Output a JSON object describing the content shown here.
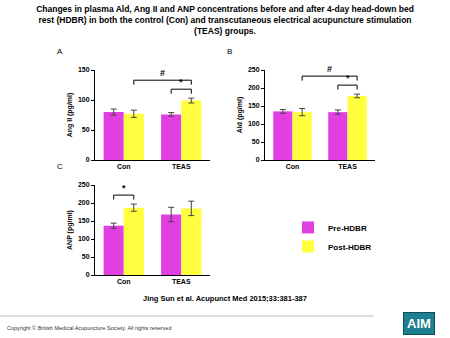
{
  "title_lines": [
    "Changes in plasma Ald, Ang II and ANP concentrations before and after 4-day head-down bed",
    "rest (HDBR) in both the control (Con) and transcutaneous electrical acupuncture stimulation",
    "(TEAS) groups."
  ],
  "chart_data": [
    {
      "type": "bar",
      "panel": "A",
      "y_label": "Ang II (pg/ml)",
      "categories": [
        "Con",
        "TEAS"
      ],
      "series": [
        {
          "name": "Pre-HDBR",
          "color": "#e23fe2",
          "values": [
            80,
            76
          ],
          "errors": [
            5,
            3
          ]
        },
        {
          "name": "Post-HDBR",
          "color": "#ffff40",
          "values": [
            77,
            99
          ],
          "errors": [
            6,
            4
          ]
        }
      ],
      "ylim": [
        0,
        150
      ],
      "yticks": [
        0,
        50,
        100,
        150
      ],
      "grid": false,
      "significance": [
        {
          "text": "*",
          "from": {
            "category": "TEAS",
            "series": "Pre-HDBR"
          },
          "to": {
            "category": "TEAS",
            "series": "Post-HDBR"
          }
        },
        {
          "text": "#",
          "from": {
            "category": "Con",
            "series": "Post-HDBR"
          },
          "to": {
            "category": "TEAS",
            "series": "Post-HDBR"
          }
        }
      ]
    },
    {
      "type": "bar",
      "panel": "B",
      "y_label": "Ald (pg/ml)",
      "categories": [
        "Con",
        "TEAS"
      ],
      "series": [
        {
          "name": "Pre-HDBR",
          "color": "#e23fe2",
          "values": [
            135,
            133
          ],
          "errors": [
            5,
            6
          ]
        },
        {
          "name": "Post-HDBR",
          "color": "#ffff40",
          "values": [
            133,
            178
          ],
          "errors": [
            10,
            5
          ]
        }
      ],
      "ylim": [
        0,
        250
      ],
      "yticks": [
        0,
        50,
        100,
        150,
        200,
        250
      ],
      "grid": false,
      "significance": [
        {
          "text": "*",
          "from": {
            "category": "TEAS",
            "series": "Pre-HDBR"
          },
          "to": {
            "category": "TEAS",
            "series": "Post-HDBR"
          }
        },
        {
          "text": "#",
          "from": {
            "category": "Con",
            "series": "Post-HDBR"
          },
          "to": {
            "category": "TEAS",
            "series": "Post-HDBR"
          }
        }
      ]
    },
    {
      "type": "bar",
      "panel": "C",
      "y_label": "ANP (pg/ml)",
      "categories": [
        "Con",
        "TEAS"
      ],
      "series": [
        {
          "name": "Pre-HDBR",
          "color": "#e23fe2",
          "values": [
            137,
            168
          ],
          "errors": [
            7,
            20
          ]
        },
        {
          "name": "Post-HDBR",
          "color": "#ffff40",
          "values": [
            187,
            185
          ],
          "errors": [
            10,
            20
          ]
        }
      ],
      "ylim": [
        0,
        250
      ],
      "yticks": [
        0,
        50,
        100,
        150,
        200,
        250
      ],
      "grid": false,
      "significance": [
        {
          "text": "*",
          "from": {
            "category": "Con",
            "series": "Pre-HDBR"
          },
          "to": {
            "category": "Con",
            "series": "Post-HDBR"
          }
        }
      ]
    }
  ],
  "citation": "Jing Sun et al. Acupunct Med 2015;33:381-387",
  "copyright": "Copyright © British Medical Acupuncture Society. All rights reserved",
  "logo": "AIM"
}
